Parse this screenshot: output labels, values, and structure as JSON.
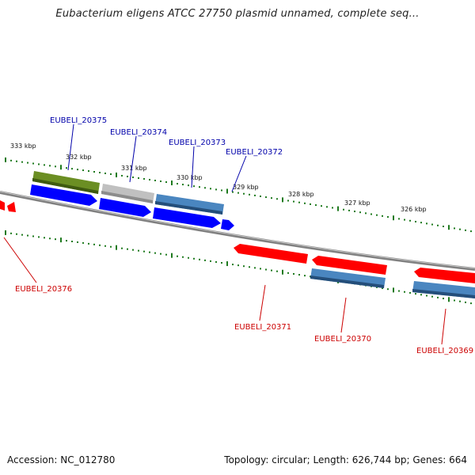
{
  "title": "Eubacterium eligens ATCC 27750 plasmid unnamed, complete seq...",
  "footer": {
    "accession": "Accession: NC_012780",
    "stats": "Topology: circular; Length: 626,744 bp; Genes: 664"
  },
  "colors": {
    "forward_label": "#0000aa",
    "reverse_label": "#cc0000",
    "tick": "#1e7a1e",
    "backbone": "#808080",
    "blue": "#0000ff",
    "red": "#ff0000",
    "steel": "#4a86c0",
    "olive": "#6b8e23",
    "grey": "#bdbdbd"
  },
  "scale_labels": [
    "333 kbp",
    "332 kbp",
    "331 kbp",
    "330 kbp",
    "329 kbp",
    "328 kbp",
    "327 kbp",
    "326 kbp"
  ],
  "forward_gene_labels": [
    "EUBELI_20375",
    "EUBELI_20374",
    "EUBELI_20373",
    "EUBELI_20372"
  ],
  "reverse_gene_labels": [
    "EUBELI_20376",
    "EUBELI_20371",
    "EUBELI_20370",
    "EUBELI_20369"
  ]
}
